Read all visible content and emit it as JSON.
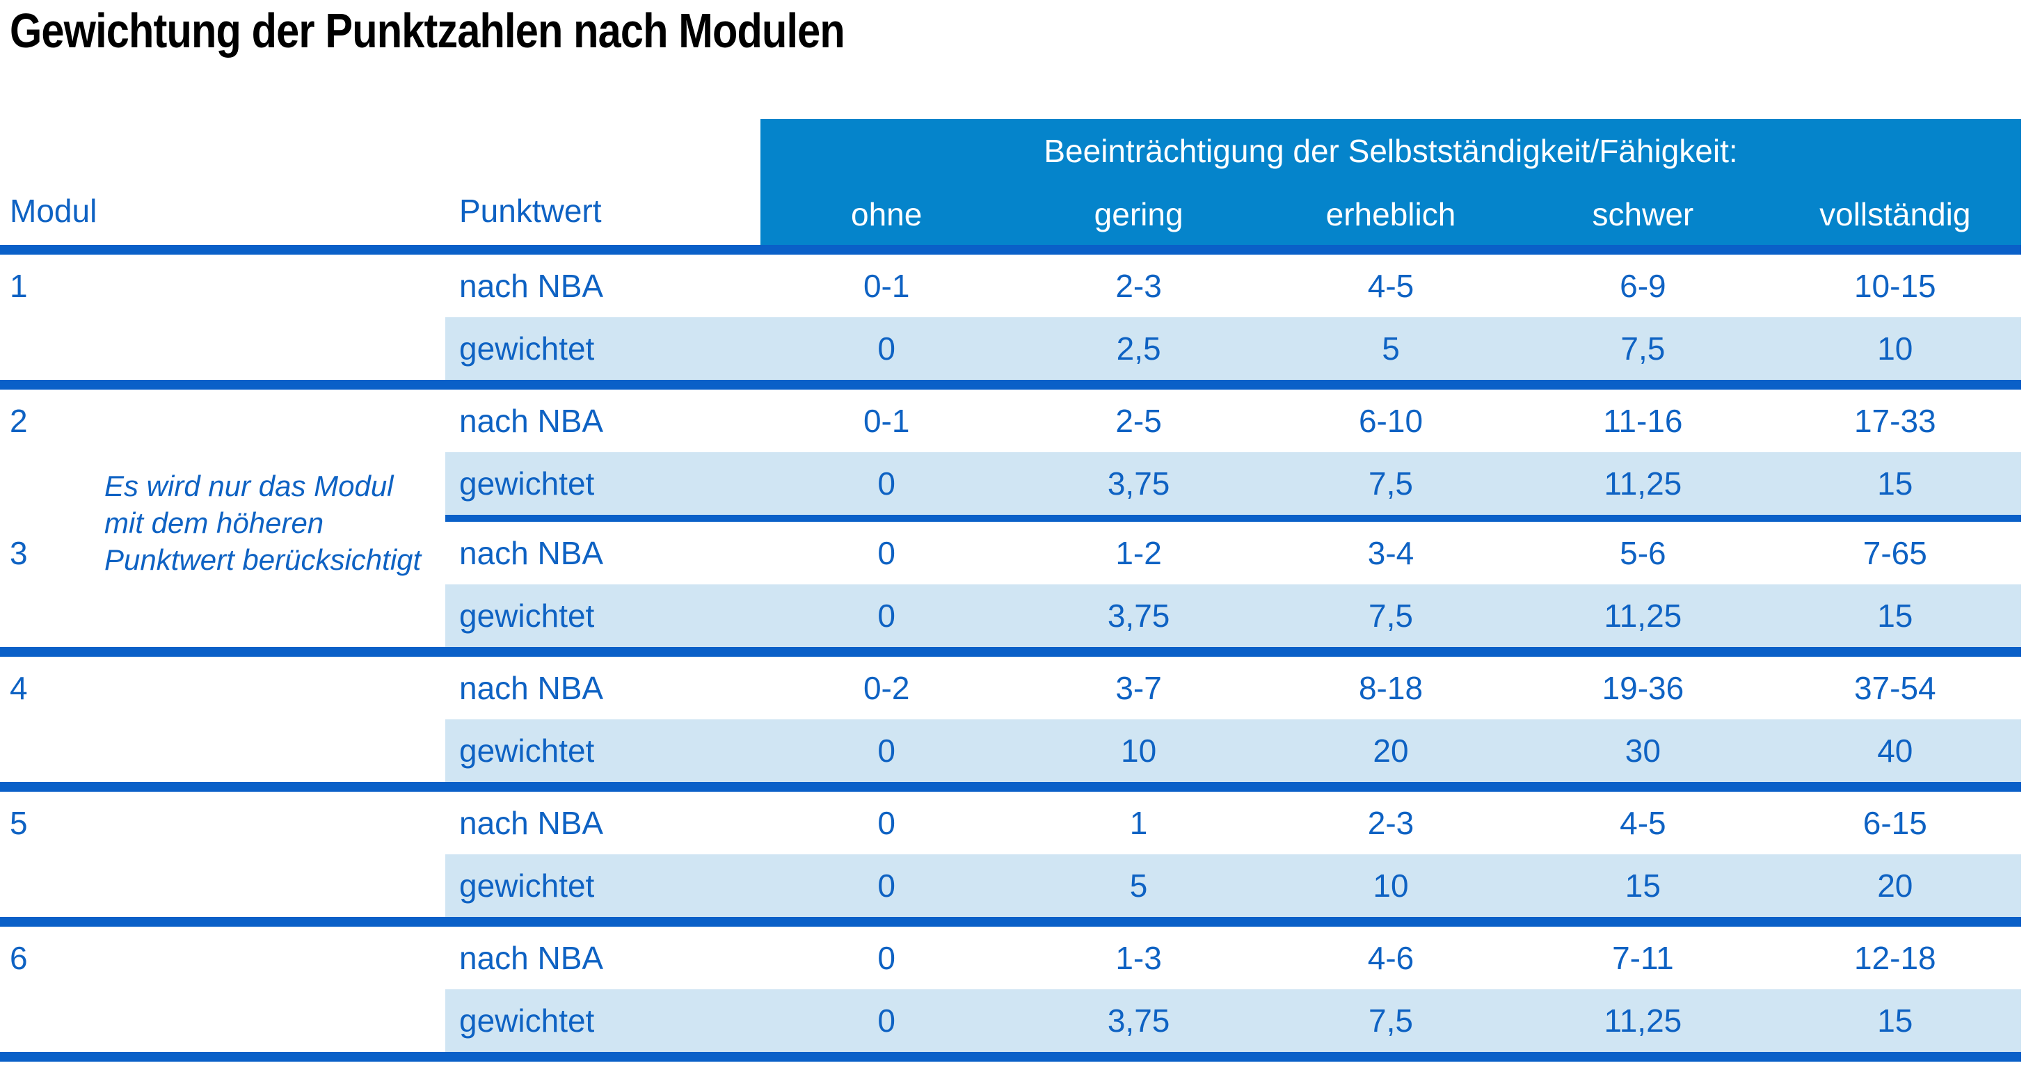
{
  "title": "Gewichtung der Punktzahlen nach Modulen",
  "colors": {
    "header_bg": "#0584cb",
    "stripe": "#d0e5f3",
    "line": "#0a60c8",
    "text_blue": "#0e62c3",
    "header_text": "#ffffff",
    "title_color": "#000000"
  },
  "table": {
    "modul_header": "Modul",
    "punktwert_header": "Punktwert",
    "impairment_header": "Beeinträchtigung der Selbstständigkeit/Fähigkeit:",
    "severity_headers": [
      "ohne",
      "gering",
      "erheblich",
      "schwer",
      "vollständig"
    ],
    "row_labels": {
      "nba": "nach NBA",
      "gew": "gewichtet"
    },
    "note_lines": [
      "Es wird nur das Modul",
      "mit dem höheren",
      "Punktwert berücksichtigt"
    ],
    "modules": [
      {
        "id": "1",
        "nba": [
          "0-1",
          "2-3",
          "4-5",
          "6-9",
          "10-15"
        ],
        "gew": [
          "0",
          "2,5",
          "5",
          "7,5",
          "10"
        ]
      },
      {
        "id": "2",
        "nba": [
          "0-1",
          "2-5",
          "6-10",
          "11-16",
          "17-33"
        ],
        "gew": [
          "0",
          "3,75",
          "7,5",
          "11,25",
          "15"
        ]
      },
      {
        "id": "3",
        "nba": [
          "0",
          "1-2",
          "3-4",
          "5-6",
          "7-65"
        ],
        "gew": [
          "0",
          "3,75",
          "7,5",
          "11,25",
          "15"
        ]
      },
      {
        "id": "4",
        "nba": [
          "0-2",
          "3-7",
          "8-18",
          "19-36",
          "37-54"
        ],
        "gew": [
          "0",
          "10",
          "20",
          "30",
          "40"
        ]
      },
      {
        "id": "5",
        "nba": [
          "0",
          "1",
          "2-3",
          "4-5",
          "6-15"
        ],
        "gew": [
          "0",
          "5",
          "10",
          "15",
          "20"
        ]
      },
      {
        "id": "6",
        "nba": [
          "0",
          "1-3",
          "4-6",
          "7-11",
          "12-18"
        ],
        "gew": [
          "0",
          "3,75",
          "7,5",
          "11,25",
          "15"
        ]
      }
    ]
  }
}
